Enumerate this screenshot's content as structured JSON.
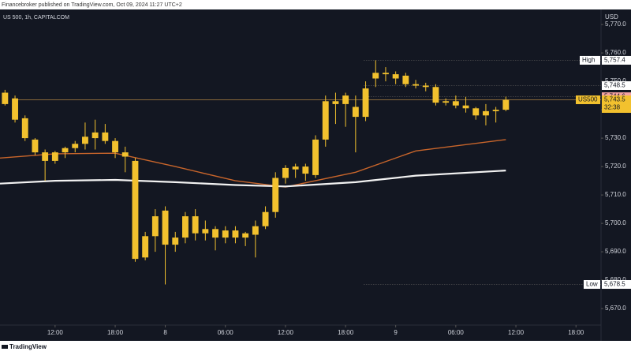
{
  "chart_data": {
    "type": "candlestick",
    "byline": "Financebroker published on TradingView.com, Oct 09, 2024 11:27 UTC+2",
    "title": "US 500, 1h, CAPITALCOM",
    "currency": "USD",
    "brand": "TradingView",
    "color": "#f2c12e",
    "x": [
      -5,
      -4,
      -3,
      -2,
      -1,
      0,
      1,
      2,
      3,
      4,
      5,
      6,
      7,
      8,
      9,
      10,
      11,
      12,
      13,
      14,
      15,
      16,
      17,
      18,
      19,
      20,
      21,
      22,
      23,
      24,
      25,
      26,
      27,
      28,
      29,
      30,
      31,
      32,
      33,
      34,
      35,
      36,
      37,
      38,
      39,
      40,
      41,
      42,
      43,
      44,
      45
    ],
    "open": [
      5746,
      5744,
      5737,
      5729.5,
      5725,
      5722,
      5725,
      5726.5,
      5728,
      5730,
      5732,
      5729,
      5725,
      5722,
      5688,
      5695.5,
      5704.5,
      5692.5,
      5695,
      5702.5,
      5696.5,
      5698,
      5695,
      5697.5,
      5695,
      5696,
      5699,
      5704,
      5716,
      5719,
      5720,
      5717,
      5729.5,
      5743,
      5742,
      5741,
      5737.5,
      5751,
      5753,
      5752.5,
      5752,
      5749,
      5748.5,
      5748,
      5742.5,
      5743,
      5741.5,
      5740.5,
      5738,
      5739.5,
      5740
    ],
    "high": [
      5747,
      5745,
      5738,
      5730,
      5726,
      5725.5,
      5727,
      5729,
      5735.5,
      5736.5,
      5735,
      5730,
      5727,
      5723,
      5697,
      5705,
      5706,
      5697,
      5704,
      5705,
      5701,
      5699,
      5699,
      5699,
      5697,
      5701,
      5706,
      5718,
      5720.5,
      5721,
      5721,
      5731,
      5745,
      5746,
      5746,
      5745,
      5750,
      5757.4,
      5755,
      5753.5,
      5753,
      5750.5,
      5749.5,
      5749,
      5744,
      5745,
      5744.5,
      5741,
      5742,
      5741,
      5744.6
    ],
    "low": [
      5741.5,
      5735.5,
      5729,
      5724,
      5715,
      5721,
      5723,
      5725,
      5726,
      5726,
      5728,
      5723,
      5718,
      5686.5,
      5687,
      5690,
      5678.5,
      5690,
      5693,
      5694,
      5694,
      5690.5,
      5693,
      5693,
      5692,
      5688,
      5698,
      5702,
      5714,
      5716,
      5715,
      5716,
      5727,
      5735,
      5734,
      5725,
      5736,
      5748,
      5750,
      5749,
      5748,
      5747.5,
      5746.5,
      5741.5,
      5741.5,
      5740.5,
      5739,
      5736.5,
      5734.5,
      5735.5,
      5739.5
    ],
    "close": [
      5742,
      5736.5,
      5730,
      5725,
      5722,
      5725,
      5726.5,
      5728,
      5730.5,
      5732,
      5729,
      5725,
      5723.5,
      5687.5,
      5695.5,
      5702.5,
      5692.5,
      5695,
      5702.5,
      5696.5,
      5698,
      5695,
      5697.5,
      5695,
      5696.5,
      5699,
      5704,
      5716,
      5719.5,
      5720,
      5717.5,
      5729.5,
      5743,
      5742,
      5745,
      5737.5,
      5747.5,
      5753,
      5752.5,
      5751,
      5749,
      5748.5,
      5748,
      5742.5,
      5743,
      5741.5,
      5740.5,
      5738,
      5739.5,
      5740,
      5743.5
    ],
    "series": [
      {
        "color": "#c8652b",
        "x": [
          -5.5,
          0,
          6,
          12,
          18,
          23,
          30,
          36,
          45
        ],
        "values": [
          5723,
          5724.5,
          5724.7,
          5720,
          5715,
          5712.8,
          5718,
          5725.5,
          5729.5
        ]
      },
      {
        "color": "#f2f2f2",
        "x": [
          -5.5,
          0,
          6,
          12,
          18,
          23,
          30,
          36,
          45
        ],
        "values": [
          5714,
          5715,
          5715.3,
          5714.5,
          5713.5,
          5713,
          5714.5,
          5716.8,
          5718.6
        ]
      }
    ],
    "xlim": [
      -5.5,
      54.5
    ],
    "ylim": [
      5775.3,
      5659.2
    ],
    "xticks": [
      {
        "value": 0,
        "label": "12:00"
      },
      {
        "value": 6,
        "label": "18:00"
      },
      {
        "value": 11,
        "label": "8"
      },
      {
        "value": 17,
        "label": "06:00"
      },
      {
        "value": 23,
        "label": "12:00"
      },
      {
        "value": 29,
        "label": "18:00"
      },
      {
        "value": 34,
        "label": "9"
      },
      {
        "value": 40,
        "label": "06:00"
      },
      {
        "value": 46,
        "label": "12:00"
      },
      {
        "value": 52,
        "label": "18:00"
      }
    ],
    "yticks": [
      {
        "value": 5670,
        "label": "5,670.0"
      },
      {
        "value": 5680,
        "label": "5,680.0"
      },
      {
        "value": 5690,
        "label": "5,690.0"
      },
      {
        "value": 5700,
        "label": "5,700.0"
      },
      {
        "value": 5710,
        "label": "5,710.0"
      },
      {
        "value": 5720,
        "label": "5,720.0"
      },
      {
        "value": 5730,
        "label": "5,730.0"
      },
      {
        "value": 5740,
        "label": "5,740.0"
      },
      {
        "value": 5750,
        "label": "5,750.0"
      },
      {
        "value": 5760,
        "label": "5,760.0"
      },
      {
        "value": 5770,
        "label": "5,770.0"
      }
    ],
    "price_tags": [
      {
        "title": "High",
        "value": 5757.4,
        "label": "5,757.4",
        "color": "#ffffff"
      },
      {
        "value": 5748.5,
        "label": "5,748.5",
        "color": "#ffffff"
      },
      {
        "value": 5744.6,
        "label": "5,744.6",
        "color": "#f4a3a3"
      },
      {
        "title": "US500",
        "value": 5743.5,
        "label": "5,743.5",
        "countdown": "32:38",
        "color": "#f2c12e"
      },
      {
        "title": "Low",
        "value": 5678.5,
        "label": "5,678.5",
        "color": "#ffffff"
      }
    ]
  }
}
